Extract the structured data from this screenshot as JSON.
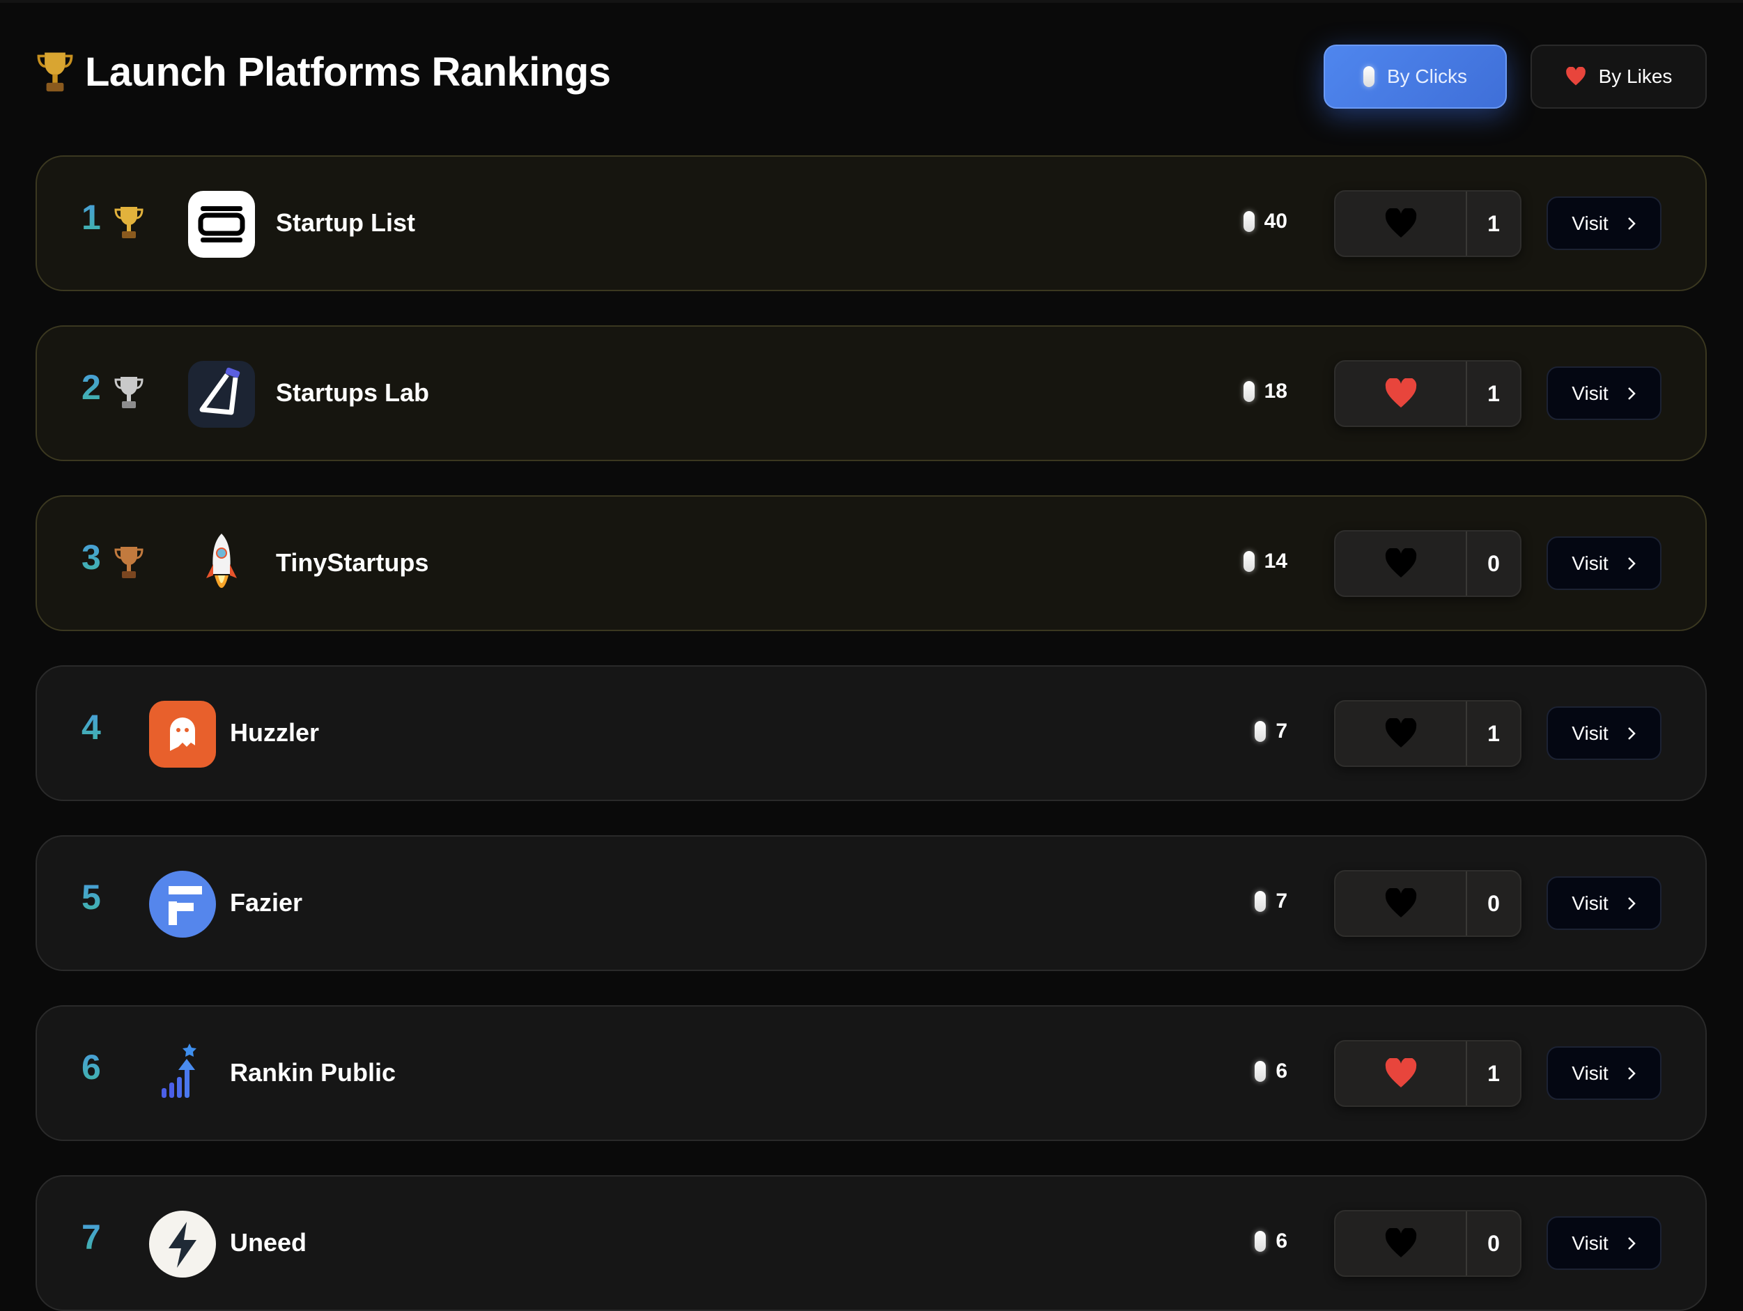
{
  "header": {
    "title": "Launch Platforms Rankings",
    "icon": "trophy-icon"
  },
  "sort": {
    "by_clicks_label": "By Clicks",
    "by_likes_label": "By Likes",
    "active": "by_clicks"
  },
  "colors": {
    "accent": "#4f86ee",
    "heart_liked": "#e8453c",
    "heart_unliked": "#000000",
    "rank_gradient": [
      "#4a9be0",
      "#3fb6a4"
    ]
  },
  "visit_label": "Visit",
  "platforms": [
    {
      "rank": "1",
      "medal": "gold",
      "name": "Startup List",
      "logo": "startup-list-logo",
      "clicks": "40",
      "liked": false,
      "likes": "1"
    },
    {
      "rank": "2",
      "medal": "silver",
      "name": "Startups Lab",
      "logo": "startups-lab-logo",
      "clicks": "18",
      "liked": true,
      "likes": "1"
    },
    {
      "rank": "3",
      "medal": "bronze",
      "name": "TinyStartups",
      "logo": "tinystartups-logo",
      "clicks": "14",
      "liked": false,
      "likes": "0"
    },
    {
      "rank": "4",
      "medal": null,
      "name": "Huzzler",
      "logo": "huzzler-logo",
      "clicks": "7",
      "liked": false,
      "likes": "1"
    },
    {
      "rank": "5",
      "medal": null,
      "name": "Fazier",
      "logo": "fazier-logo",
      "clicks": "7",
      "liked": false,
      "likes": "0"
    },
    {
      "rank": "6",
      "medal": null,
      "name": "Rankin Public",
      "logo": "rankin-public-logo",
      "clicks": "6",
      "liked": true,
      "likes": "1"
    },
    {
      "rank": "7",
      "medal": null,
      "name": "Uneed",
      "logo": "uneed-logo",
      "clicks": "6",
      "liked": false,
      "likes": "0"
    }
  ]
}
